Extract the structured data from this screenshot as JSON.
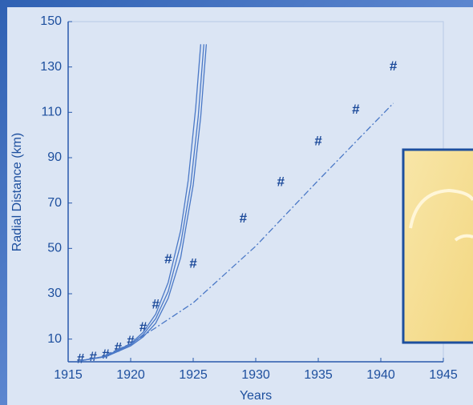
{
  "chart_data": {
    "type": "scatter",
    "xlabel": "Years",
    "ylabel": "Radial Distance (km)",
    "xlim": [
      1915,
      1945
    ],
    "xticks": [
      1915,
      1920,
      1925,
      1930,
      1935,
      1940,
      1945
    ],
    "ylim": [
      0,
      150
    ],
    "yticks": [
      10,
      30,
      50,
      70,
      90,
      110,
      130,
      150
    ],
    "series": [
      {
        "type": "scatter",
        "marker": "#",
        "color": "#1c4a9a",
        "x": [
          1916,
          1917,
          1918,
          1919,
          1920,
          1921,
          1922,
          1923,
          1925,
          1929,
          1932,
          1935,
          1938,
          1941
        ],
        "values": [
          1,
          2,
          3,
          6,
          9,
          15,
          25,
          45,
          43,
          63,
          79,
          97,
          111,
          130
        ]
      },
      {
        "type": "line",
        "color": "#4a78c6",
        "x": [
          1916,
          1918,
          1920,
          1921,
          1922,
          1923,
          1924,
          1924.6,
          1925.2,
          1925.6
        ],
        "values": [
          0.5,
          2.5,
          8,
          13,
          21,
          35,
          58,
          80,
          112,
          140
        ]
      },
      {
        "type": "line",
        "color": "#4a78c6",
        "x": [
          1916,
          1918,
          1920,
          1921,
          1922,
          1923,
          1924,
          1924.8,
          1925.4,
          1925.85
        ],
        "values": [
          0.5,
          2.3,
          7.5,
          12,
          19,
          31,
          52,
          78,
          108,
          140
        ]
      },
      {
        "type": "line",
        "color": "#4a78c6",
        "x": [
          1916,
          1918,
          1920,
          1921,
          1922,
          1923,
          1924,
          1925,
          1925.6,
          1926.05
        ],
        "values": [
          0.5,
          2.2,
          7,
          11,
          17,
          28,
          46,
          78,
          108,
          140
        ]
      },
      {
        "type": "line",
        "dash": "dashdot",
        "color": "#4a78c6",
        "x": [
          1918,
          1920,
          1922,
          1925,
          1930,
          1935,
          1941
        ],
        "values": [
          3,
          8,
          15,
          26,
          51,
          80,
          114
        ]
      }
    ]
  }
}
